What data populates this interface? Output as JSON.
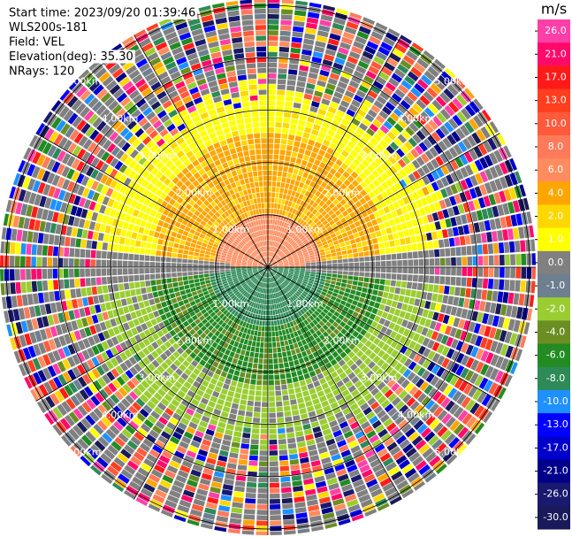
{
  "chart_data": {
    "type": "ppi",
    "info": [
      "Start time: 2023/09/20 01:39:46",
      "WLS200s-181",
      "Field: VEL",
      "Elevation(deg): 35.30",
      "NRays: 120"
    ],
    "range_rings": [
      {
        "value": 1,
        "label": "1.00km"
      },
      {
        "value": 2,
        "label": "2.00km"
      },
      {
        "value": 3,
        "label": "3.00km"
      },
      {
        "value": 4,
        "label": "4.00km"
      },
      {
        "value": 5,
        "label": "5.00km"
      }
    ],
    "colorbar": {
      "label": "m/s",
      "levels": [
        {
          "value": 26,
          "label": "26.0"
        },
        {
          "value": 21,
          "label": "21.0"
        },
        {
          "value": 17,
          "label": "17.0"
        },
        {
          "value": 13,
          "label": "13.0"
        },
        {
          "value": 10,
          "label": "10.0"
        },
        {
          "value": 8,
          "label": "8.0"
        },
        {
          "value": 6,
          "label": "6.0"
        },
        {
          "value": 4,
          "label": "4.0"
        },
        {
          "value": 2,
          "label": "2.0"
        },
        {
          "value": 1,
          "label": "1.0"
        },
        {
          "value": 0,
          "label": "0.0"
        },
        {
          "value": -1,
          "label": "-1.0"
        },
        {
          "value": -2,
          "label": "-2.0"
        },
        {
          "value": -4,
          "label": "-4.0"
        },
        {
          "value": -6,
          "label": "-6.0"
        },
        {
          "value": -8,
          "label": "-8.0"
        },
        {
          "value": -10,
          "label": "-10.0"
        },
        {
          "value": -13,
          "label": "-13.0"
        },
        {
          "value": -17,
          "label": "-17.0"
        },
        {
          "value": -21,
          "label": "-21.0"
        },
        {
          "value": -26,
          "label": "-26.0"
        },
        {
          "value": -30,
          "label": "-30.0"
        }
      ],
      "colors": [
        "#ff3fa8",
        "#ff0a6a",
        "#ff1a1a",
        "#ff3d1f",
        "#ff5a3c",
        "#ff7a5a",
        "#ff8c5e",
        "#ffa500",
        "#ffd700",
        "#ffff00",
        "#808080",
        "#6e7f8f",
        "#9acd32",
        "#6b8e23",
        "#228b22",
        "#2e8b57",
        "#1e90ff",
        "#0000ff",
        "#0000cd",
        "#00008b",
        "#191970",
        "#1a1a5a"
      ]
    }
  }
}
